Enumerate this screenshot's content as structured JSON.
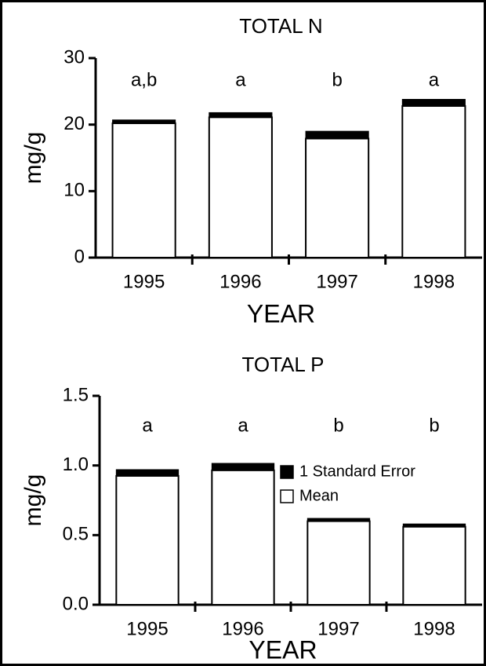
{
  "chart_data": [
    {
      "type": "bar",
      "title": "TOTAL N",
      "xlabel": "YEAR",
      "ylabel": "mg/g",
      "categories": [
        "1995",
        "1996",
        "1997",
        "1998"
      ],
      "values": [
        20.2,
        21.1,
        17.9,
        22.8
      ],
      "errors": [
        0.5,
        0.7,
        1.1,
        1.0
      ],
      "annotations": [
        "a,b",
        "a",
        "b",
        "a"
      ],
      "color": "#ffffff",
      "error_color": "#000000",
      "ylim": [
        0,
        30
      ],
      "yticks": [
        0,
        10,
        20,
        30
      ]
    },
    {
      "type": "bar",
      "title": "TOTAL P",
      "xlabel": "YEAR",
      "ylabel": "mg/g",
      "categories": [
        "1995",
        "1996",
        "1997",
        "1998"
      ],
      "values": [
        0.925,
        0.965,
        0.6,
        0.56
      ],
      "errors": [
        0.045,
        0.05,
        0.02,
        0.02
      ],
      "annotations": [
        "a",
        "a",
        "b",
        "b"
      ],
      "legend": [
        "1 Standard Error",
        "Mean"
      ],
      "color": "#ffffff",
      "error_color": "#000000",
      "ylim": [
        0,
        1.5
      ],
      "yticks": [
        {
          "value": 0,
          "label": "0.0"
        },
        0.5,
        {
          "value": 1,
          "label": "1.0"
        },
        1.5
      ]
    }
  ]
}
